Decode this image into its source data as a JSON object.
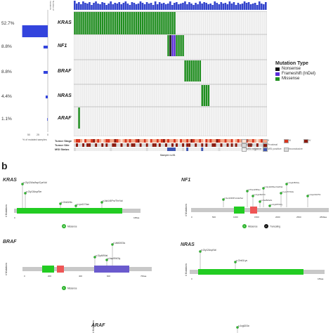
{
  "panel_b_label": "b",
  "oncoprint": {
    "genes": [
      "KRAS",
      "NF1",
      "BRAF",
      "NRAS",
      "ARAF"
    ],
    "freq": [
      "52.7%",
      "8.8%",
      "8.8%",
      "4.4%",
      "1.1%"
    ],
    "freq_values": [
      52.7,
      8.8,
      8.8,
      4.4,
      1.1
    ],
    "side_xlabel": "% of mutated samples",
    "side_ticks": [
      "50",
      "25",
      "0"
    ],
    "top_label": "Number of mutations",
    "sample_label": "Sample n=91",
    "n_samples": 91,
    "track_labels": [
      "Tumor Stage",
      "Tumor Site",
      "MSI Status"
    ],
    "colors": {
      "Missense": "#1f8f1f",
      "Frameshift": "#5b2bd9",
      "Nonsense": "#111111",
      "bar": "#3344dd",
      "top_bar": "#3344cc"
    }
  },
  "legend": {
    "title": "Mutation Type",
    "items": [
      {
        "label": "Nonsense",
        "color": "#111111"
      },
      {
        "label": "Frameshift (InDel)",
        "color": "#5b2bd9"
      },
      {
        "label": "Missense",
        "color": "#1f8f1f"
      }
    ]
  },
  "annotation_legend": {
    "items": [
      {
        "label": "II/I",
        "color": "#fbe1d4"
      },
      {
        "label": "II",
        "color": "#f3a88a"
      },
      {
        "label": "III",
        "color": "#d9341d"
      },
      {
        "label": "IV",
        "color": "#8b1a0e"
      },
      {
        "label": "Distal",
        "color": "#d9d9d9"
      },
      {
        "label": "Proximal",
        "color": "#8b1a0e"
      },
      {
        "label": "MSI negative",
        "color": "#eeeeee"
      },
      {
        "label": "MSI positive",
        "color": "#3d55b0"
      },
      {
        "label": "Inconclusive",
        "color": "#d9d9d9"
      }
    ]
  },
  "lollipops": [
    {
      "gene": "KRAS",
      "ylabel": "# Mutations",
      "ticks": [
        "0",
        "188aa"
      ],
      "mutations": [
        "p.Gly12Ala/Asp/Cys/Val",
        "p.Gly13Asp/Ser",
        "p.Gln61His",
        "p.Lys117Asn",
        "p.Ala146Pro/Thr/Val"
      ],
      "legend": [
        {
          "count": "48",
          "label": "Missense",
          "color": "#1f8f1f"
        }
      ]
    },
    {
      "gene": "NF1",
      "ylabel": "# Mutations",
      "ticks": [
        "0",
        "500",
        "1000",
        "1500",
        "2000",
        "2500",
        "2839aa"
      ],
      "mutations": [
        "p.Ser1036Pro/Ala/Ser",
        "p.Phe1155Ser",
        "p.Arg1362Thr",
        "p.Ala45Metfs",
        "p.Gly1166Ser/Val/Val",
        "p.Arg1870Gly",
        "p.Lys1573Glu",
        "p.Arg2450Gly",
        "p.Asp2192Thr"
      ],
      "legend": [
        {
          "count": "6",
          "label": "Missense",
          "color": "#1f8f1f"
        },
        {
          "count": "2",
          "label": "Truncating",
          "color": "#111111"
        }
      ]
    },
    {
      "gene": "BRAF",
      "ylabel": "# Mutations",
      "ticks": [
        "0",
        "200",
        "400",
        "600",
        "766aa"
      ],
      "mutations": [
        "p.Val600Glu",
        "p.Gly469Val",
        "p.Asp594Gly"
      ],
      "legend": [
        {
          "count": "8",
          "label": "Missense",
          "color": "#1f8f1f"
        }
      ]
    },
    {
      "gene": "NRAS",
      "ylabel": "# Mutations",
      "ticks": [
        "0",
        "189aa"
      ],
      "mutations": [
        "p.Gly12Asp/Val",
        "p.Gln61Lys"
      ],
      "legend": []
    },
    {
      "gene": "ARAF",
      "ylabel": "# Mutations",
      "ticks": [],
      "mutations": [
        "p.Arg52Gln"
      ],
      "legend": []
    }
  ]
}
